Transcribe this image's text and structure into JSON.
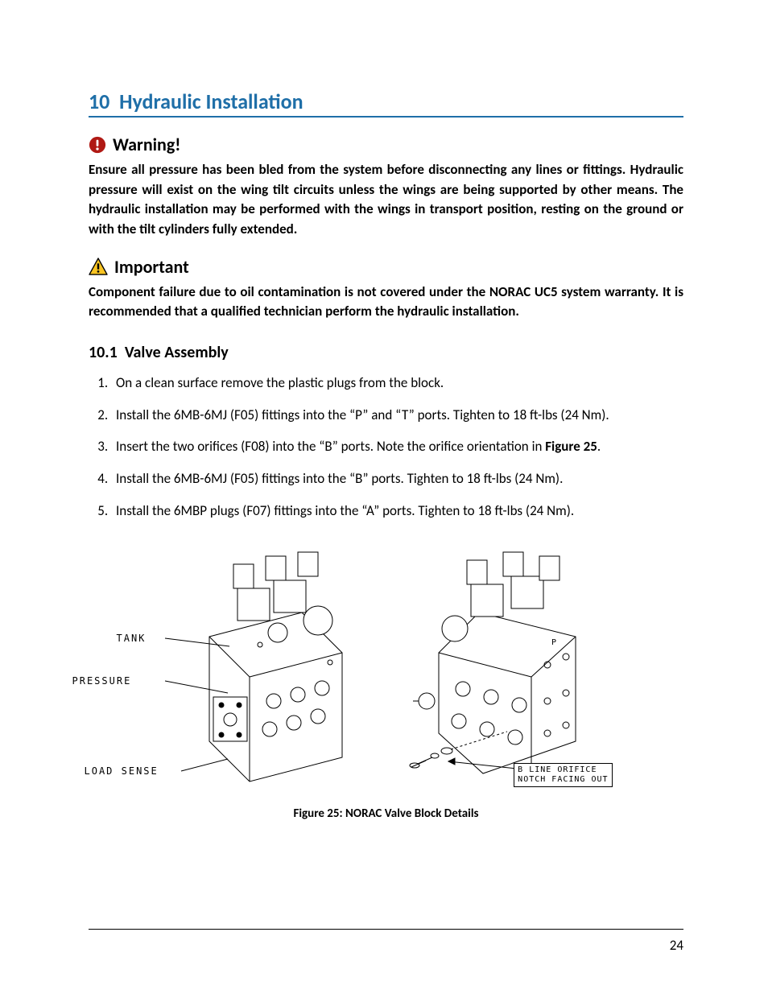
{
  "section": {
    "number": "10",
    "title": "Hydraulic Installation"
  },
  "warning": {
    "label": "Warning!",
    "text": "Ensure all pressure has been bled from the system before disconnecting any lines or fittings.  Hydraulic pressure will exist on the wing tilt circuits unless the wings are being supported by other means.  The hydraulic installation may be performed with the wings in transport position, resting on the ground or with the tilt cylinders fully extended."
  },
  "important": {
    "label": "Important",
    "text": "Component failure due to oil contamination is not covered under the NORAC UC5 system warranty. It is recommended that a qualified technician perform the hydraulic installation."
  },
  "subsection": {
    "number": "10.1",
    "title": "Valve Assembly"
  },
  "steps": [
    "On a clean surface remove the plastic plugs from the block.",
    "Install the 6MB-6MJ (F05) fittings into the “P” and “T” ports.  Tighten to 18 ft-lbs (24 Nm).",
    "Insert the two orifices (F08) into the “B” ports.  Note the orifice orientation in ",
    "Install the 6MB-6MJ (F05) fittings into the “B” ports.  Tighten to 18 ft-lbs (24 Nm).",
    "Install the 6MBP plugs (F07) fittings into the “A” ports.  Tighten to 18 ft-lbs (24 Nm)."
  ],
  "figure_ref": "Figure 25",
  "figure_ref_tail": ".",
  "figure": {
    "caption": "Figure 25:  NORAC Valve Block Details",
    "labels": {
      "tank": "TANK",
      "pressure": "PRESSURE",
      "load_sense": "LOAD SENSE",
      "orifice": "B LINE ORIFICE\nNOTCH FACING OUT"
    }
  },
  "page_number": "24",
  "colors": {
    "heading": "#1f6fa8",
    "warning_icon": "#b01914",
    "important_icon_fill": "#f8c422",
    "important_icon_stroke": "#000000",
    "text": "#000000",
    "background": "#ffffff"
  }
}
